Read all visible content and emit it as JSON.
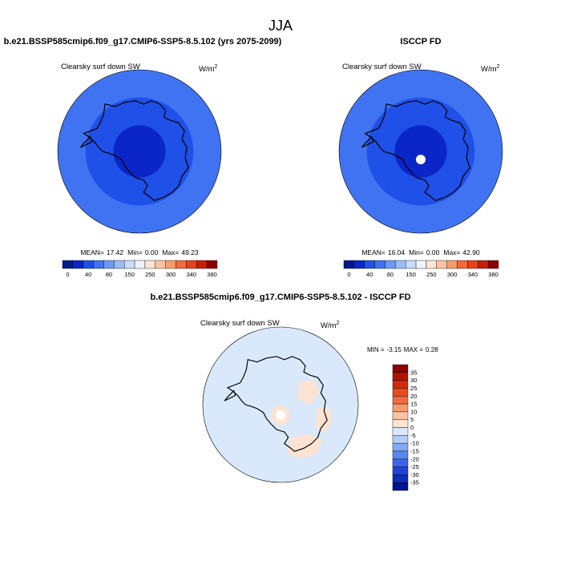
{
  "page_title": "JJA",
  "chart_data": [
    {
      "type": "heatmap",
      "projection": "south-polar-stereographic",
      "title": "b.e21.BSSP585cmip6.f09_g17.CMIP6-SSP5-8.5.102 (yrs 2075-2099)",
      "subtitle": "Clearsky surf down SW",
      "units": "W/m",
      "units_sup": "2",
      "stats": {
        "mean_label": "MEAN=",
        "mean": "17.42",
        "min_label": "Min=",
        "min": "0.00",
        "max_label": "Max=",
        "max": "49.23"
      },
      "rings": [
        {
          "value": 40,
          "color": "#3f73f2"
        },
        {
          "value": 40,
          "color": "#1f50e8"
        },
        {
          "value": 20,
          "color": "#0a26c8"
        }
      ],
      "pole_hole": false,
      "colorbar": {
        "colors": [
          "#001a8c",
          "#0a26c8",
          "#1f50e8",
          "#3f73f2",
          "#6e98f6",
          "#9cbcf7",
          "#cadcfa",
          "#eef3fd",
          "#fde3d2",
          "#fbc3a2",
          "#f79b6d",
          "#f26b3c",
          "#e8411a",
          "#c81d04",
          "#8c0000"
        ],
        "tick_labels": [
          "0",
          "40",
          "80",
          "150",
          "250",
          "300",
          "340",
          "380"
        ]
      }
    },
    {
      "type": "heatmap",
      "projection": "south-polar-stereographic",
      "title": "ISCCP FD",
      "subtitle": "Clearsky surf down SW",
      "units": "W/m",
      "units_sup": "2",
      "stats": {
        "mean_label": "MEAN=",
        "mean": "16.04",
        "min_label": "Min=",
        "min": "0.00",
        "max_label": "Max=",
        "max": "42.90"
      },
      "rings": [
        {
          "value": 40,
          "color": "#3f73f2"
        },
        {
          "value": 40,
          "color": "#1f50e8"
        },
        {
          "value": 20,
          "color": "#0a26c8"
        }
      ],
      "pole_hole": true,
      "colorbar": {
        "colors": [
          "#001a8c",
          "#0a26c8",
          "#1f50e8",
          "#3f73f2",
          "#6e98f6",
          "#9cbcf7",
          "#cadcfa",
          "#eef3fd",
          "#fde3d2",
          "#fbc3a2",
          "#f79b6d",
          "#f26b3c",
          "#e8411a",
          "#c81d04",
          "#8c0000"
        ],
        "tick_labels": [
          "0",
          "40",
          "80",
          "150",
          "250",
          "300",
          "340",
          "380"
        ]
      }
    },
    {
      "type": "heatmap",
      "projection": "south-polar-stereographic",
      "title": "b.e21.BSSP585cmip6.f09_g17.CMIP6-SSP5-8.5.102 - ISCCP FD",
      "subtitle": "Clearsky surf down SW",
      "units": "W/m",
      "units_sup": "2",
      "stats": {
        "min_label": "MIN =",
        "min": "-3.15",
        "max_label": "MAX =",
        "max": "0.28"
      },
      "background_color": "#d9e9fb",
      "positive_patch_color": "#fde3d2",
      "colorbar": {
        "orientation": "vertical",
        "colors": [
          "#8c0000",
          "#b31200",
          "#d42a08",
          "#ea4a1f",
          "#f26b3c",
          "#f79b6d",
          "#fbc3a2",
          "#fde3d2",
          "#d9e9fb",
          "#b3cdf6",
          "#84a9f4",
          "#5b87f2",
          "#3a65eb",
          "#2045d6",
          "#0e2db8",
          "#02148f"
        ],
        "tick_labels": [
          "35",
          "30",
          "25",
          "20",
          "15",
          "10",
          "5",
          "0",
          "-5",
          "-10",
          "-15",
          "-20",
          "-25",
          "-30",
          "-35"
        ]
      }
    }
  ]
}
